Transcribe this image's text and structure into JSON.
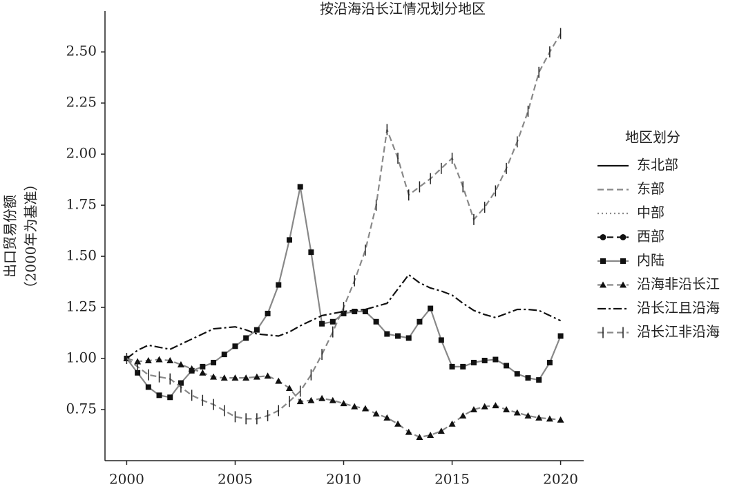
{
  "chart_data": {
    "type": "line",
    "title": "按沿海沿长江情况划分地区",
    "ylabel": [
      "出口贸易份额",
      "（2000年为基准）"
    ],
    "legend_title": "地区划分",
    "legend": "right",
    "xlim": [
      1999,
      2021
    ],
    "ylim": [
      0.5,
      2.7
    ],
    "xticks": [
      2000,
      2005,
      2010,
      2015,
      2020
    ],
    "yticks": [
      {
        "value": 0.75,
        "label": "0.75"
      },
      {
        "value": 1,
        "label": "1.00"
      },
      {
        "value": 1.25,
        "label": "1.25"
      },
      {
        "value": 1.5,
        "label": "1.50"
      },
      {
        "value": 1.75,
        "label": "1.75"
      },
      {
        "value": 2,
        "label": "2.00"
      },
      {
        "value": 2.25,
        "label": "2.25"
      },
      {
        "value": 2.5,
        "label": "2.50"
      }
    ],
    "grid": false,
    "x": [
      2000,
      2000.5,
      2001,
      2001.5,
      2002,
      2002.5,
      2003,
      2003.5,
      2004,
      2004.5,
      2005,
      2005.5,
      2006,
      2006.5,
      2007,
      2007.5,
      2008,
      2008.5,
      2009,
      2009.5,
      2010,
      2010.5,
      2011,
      2011.5,
      2012,
      2012.5,
      2013,
      2013.5,
      2014,
      2014.5,
      2015,
      2015.5,
      2016,
      2016.5,
      2017,
      2017.5,
      2018,
      2018.5,
      2019,
      2019.5,
      2020
    ],
    "series": [
      {
        "name": "东北部",
        "color": "#111111",
        "style": "solid",
        "marker": "none",
        "values": [
          null,
          null,
          null,
          null,
          null,
          null,
          null,
          null,
          null,
          null,
          null,
          null,
          null,
          null,
          null,
          null,
          null,
          null,
          null,
          null,
          null,
          null,
          null,
          null,
          null,
          null,
          null,
          null,
          null,
          null,
          null,
          null,
          null,
          null,
          null,
          null,
          null,
          null,
          null,
          null,
          null
        ]
      },
      {
        "name": "东部",
        "color": "#888888",
        "style": "dashed",
        "marker": "none",
        "values": [
          null,
          null,
          null,
          null,
          null,
          null,
          null,
          null,
          null,
          null,
          null,
          null,
          null,
          null,
          null,
          null,
          null,
          null,
          null,
          null,
          null,
          null,
          null,
          null,
          null,
          null,
          null,
          null,
          null,
          null,
          null,
          null,
          null,
          null,
          null,
          null,
          null,
          null,
          null,
          null,
          null
        ]
      },
      {
        "name": "中部",
        "color": "#888888",
        "style": "dotted",
        "marker": "none",
        "values": [
          null,
          null,
          null,
          null,
          null,
          null,
          null,
          null,
          null,
          null,
          null,
          null,
          null,
          null,
          null,
          null,
          null,
          null,
          null,
          null,
          null,
          null,
          null,
          null,
          null,
          null,
          null,
          null,
          null,
          null,
          null,
          null,
          null,
          null,
          null,
          null,
          null,
          null,
          null,
          null,
          null
        ]
      },
      {
        "name": "西部",
        "color": "#111111",
        "style": "dashed",
        "marker": "circle",
        "values": [
          null,
          null,
          null,
          null,
          null,
          null,
          null,
          null,
          null,
          null,
          null,
          null,
          null,
          null,
          null,
          null,
          null,
          null,
          null,
          null,
          null,
          null,
          null,
          null,
          null,
          null,
          null,
          null,
          null,
          null,
          null,
          null,
          null,
          null,
          null,
          null,
          null,
          null,
          null,
          null,
          null
        ]
      },
      {
        "name": "内陆",
        "color": "#888888",
        "style": "solid",
        "marker": "square",
        "values": [
          1.0,
          0.93,
          0.86,
          0.82,
          0.81,
          0.88,
          0.94,
          0.96,
          0.98,
          1.02,
          1.06,
          1.1,
          1.14,
          1.22,
          1.36,
          1.58,
          1.84,
          1.52,
          1.17,
          1.18,
          1.22,
          1.23,
          1.23,
          1.18,
          1.12,
          1.11,
          1.1,
          1.18,
          1.245,
          1.09,
          0.96,
          0.96,
          0.98,
          0.99,
          0.995,
          0.965,
          0.925,
          0.905,
          0.895,
          0.98,
          1.11
        ]
      },
      {
        "name": "沿海非沿长江",
        "color": "#888888",
        "style": "dashed",
        "marker": "triangle",
        "values": [
          1.0,
          0.985,
          0.99,
          0.995,
          0.99,
          0.97,
          0.95,
          0.93,
          0.91,
          0.905,
          0.905,
          0.905,
          0.91,
          0.915,
          0.89,
          0.855,
          0.79,
          0.795,
          0.805,
          0.795,
          0.78,
          0.765,
          0.755,
          0.73,
          0.71,
          0.68,
          0.64,
          0.615,
          0.625,
          0.645,
          0.68,
          0.72,
          0.75,
          0.765,
          0.77,
          0.75,
          0.735,
          0.72,
          0.71,
          0.705,
          0.7
        ]
      },
      {
        "name": "沿长江且沿海",
        "color": "#111111",
        "style": "dashdot",
        "marker": "none",
        "values": [
          1.0,
          1.04,
          1.065,
          1.055,
          1.045,
          1.07,
          1.095,
          1.12,
          1.145,
          1.15,
          1.155,
          1.14,
          1.12,
          1.115,
          1.11,
          1.13,
          1.16,
          1.185,
          1.21,
          1.22,
          1.23,
          1.235,
          1.24,
          1.255,
          1.27,
          1.34,
          1.41,
          1.37,
          1.345,
          1.33,
          1.31,
          1.27,
          1.235,
          1.215,
          1.2,
          1.22,
          1.24,
          1.24,
          1.235,
          1.21,
          1.185
        ]
      },
      {
        "name": "沿长江非沿海",
        "color": "#888888",
        "style": "dashed",
        "marker": "vtick",
        "values": [
          1.0,
          0.96,
          0.92,
          0.91,
          0.9,
          0.86,
          0.82,
          0.795,
          0.775,
          0.745,
          0.715,
          0.705,
          0.705,
          0.72,
          0.745,
          0.79,
          0.84,
          0.92,
          1.02,
          1.13,
          1.25,
          1.38,
          1.53,
          1.75,
          2.12,
          1.98,
          1.8,
          1.84,
          1.88,
          1.93,
          1.98,
          1.84,
          1.68,
          1.74,
          1.82,
          1.93,
          2.06,
          2.21,
          2.4,
          2.5,
          2.59
        ]
      }
    ]
  }
}
